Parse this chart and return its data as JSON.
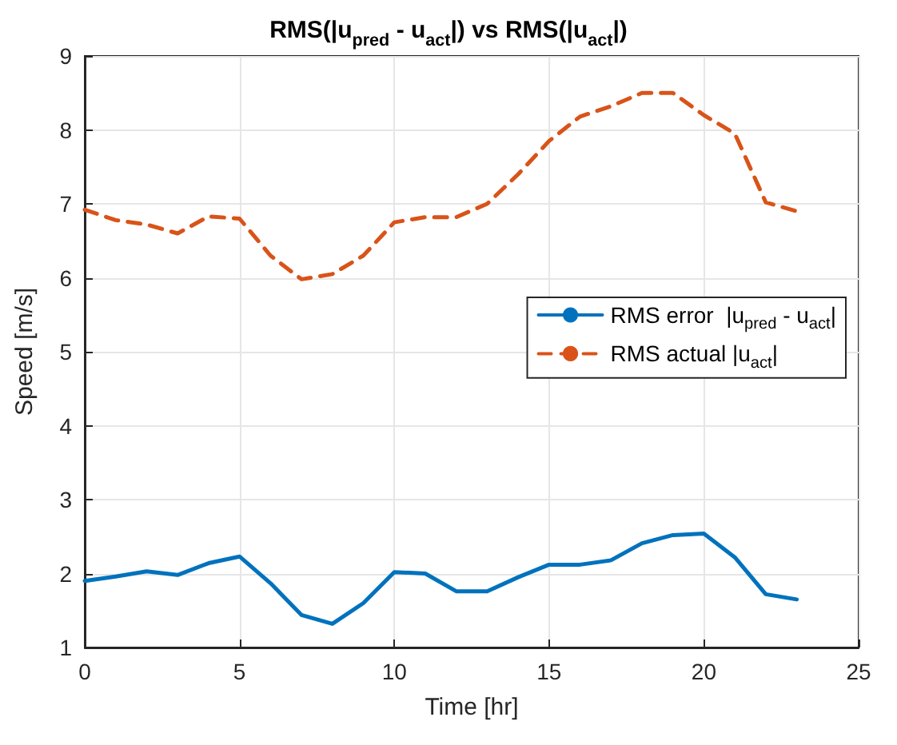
{
  "chart_data": {
    "type": "line",
    "title": "RMS(|u$_{pred}$ - u$_{act}$|) vs RMS(|u$_{act}$|)",
    "xlabel": "Time [hr]",
    "ylabel": "Speed [m/s]",
    "x": [
      0,
      1,
      2,
      3,
      4,
      5,
      6,
      7,
      8,
      9,
      10,
      11,
      12,
      13,
      14,
      15,
      16,
      17,
      18,
      19,
      20,
      21,
      22,
      23
    ],
    "series": [
      {
        "name": "RMS error  |u$_{pred}$ - u$_{act}$|",
        "color": "#0072bd",
        "line_style": "solid",
        "values": [
          1.9,
          1.96,
          2.03,
          1.98,
          2.14,
          2.23,
          1.87,
          1.44,
          1.32,
          1.6,
          2.02,
          2.0,
          1.76,
          1.76,
          1.95,
          2.12,
          2.12,
          2.18,
          2.41,
          2.52,
          2.54,
          2.22,
          1.72,
          1.65
        ]
      },
      {
        "name": "RMS actual |u$_{act}$|",
        "color": "#d95319",
        "line_style": "dashed",
        "values": [
          6.92,
          6.78,
          6.72,
          6.6,
          6.83,
          6.8,
          6.3,
          5.98,
          6.05,
          6.3,
          6.75,
          6.82,
          6.82,
          7.0,
          7.4,
          7.85,
          8.18,
          8.32,
          8.5,
          8.5,
          8.2,
          7.95,
          7.02,
          6.9
        ]
      }
    ],
    "xlim": [
      0,
      25
    ],
    "xticks": [
      0,
      5,
      10,
      15,
      20,
      25
    ],
    "ylim": [
      1,
      9
    ],
    "yticks": [
      1,
      2,
      3,
      4,
      5,
      6,
      7,
      8,
      9
    ],
    "grid": true,
    "legend": "right",
    "marker": "none"
  }
}
